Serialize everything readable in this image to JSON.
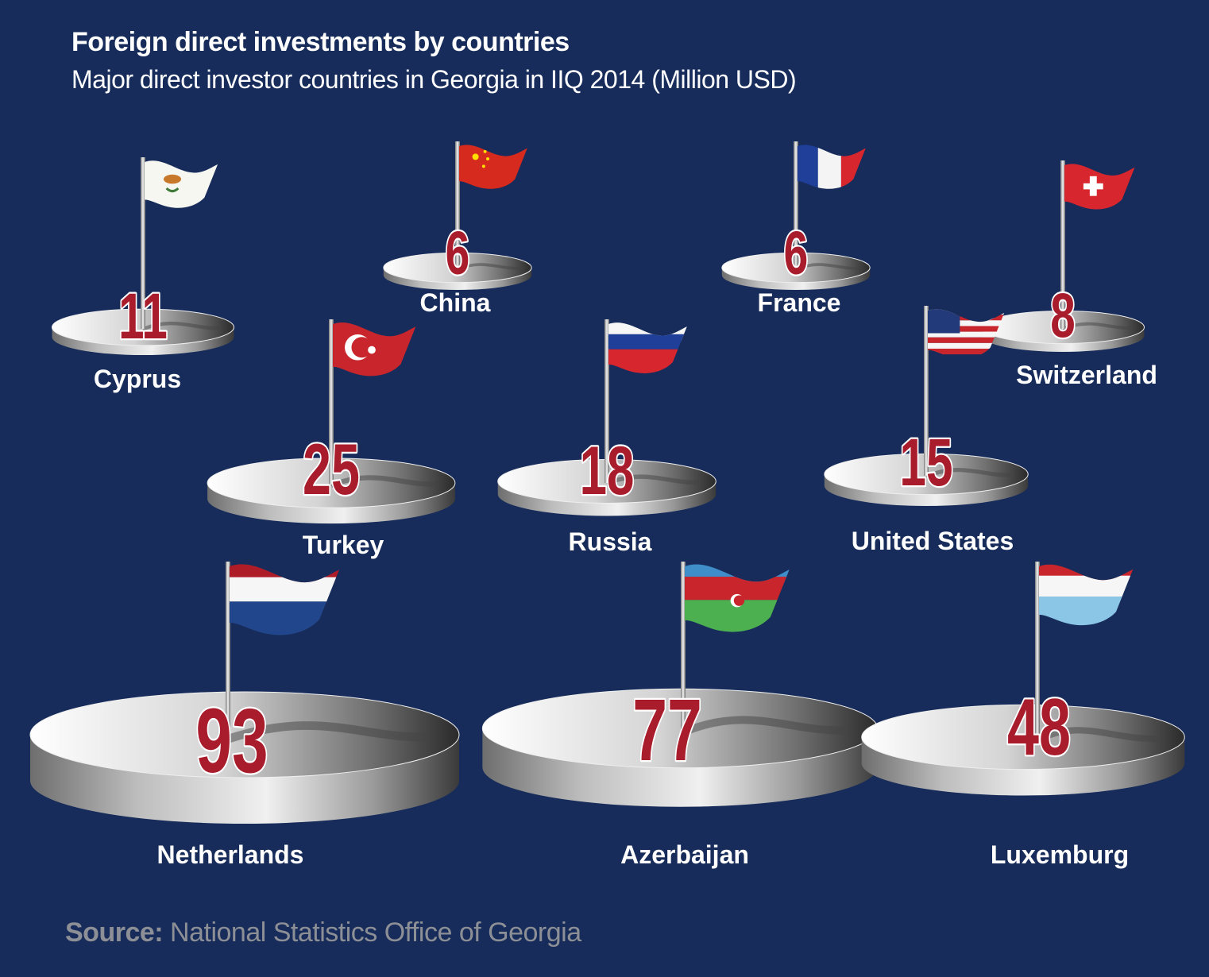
{
  "title": "Foreign direct investments by countries",
  "subtitle": "Major direct investor countries in Georgia in IIQ 2014  (Million USD)",
  "source": {
    "label": "Source:",
    "text": " National Statistics Office of Georgia"
  },
  "colors": {
    "background": "#172c5a",
    "value": "#a81c2c",
    "label": "#ffffff",
    "source": "#8d8f96"
  },
  "chart_data": {
    "type": "bar",
    "unit": "Million USD",
    "categories": [
      "Cyprus",
      "China",
      "France",
      "Switzerland",
      "Turkey",
      "Russia",
      "United States",
      "Netherlands",
      "Azerbaijan",
      "Luxemburg"
    ],
    "values": [
      11,
      6,
      6,
      8,
      25,
      18,
      15,
      93,
      77,
      48
    ],
    "flags": [
      "cyprus-flag",
      "china-flag",
      "france-flag",
      "switzerland-flag",
      "turkey-flag",
      "russia-flag",
      "united-states-flag",
      "netherlands-flag",
      "azerbaijan-flag",
      "luxemburg-flag"
    ]
  }
}
